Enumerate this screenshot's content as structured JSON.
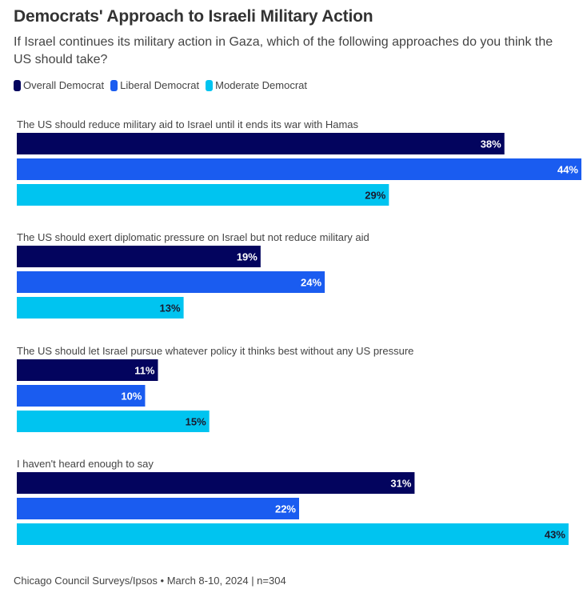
{
  "header": {
    "title": "Democrats' Approach to Israeli Military Action",
    "subtitle": "If Israel continues its military action in Gaza, which of the following approaches do you think the US should take?"
  },
  "footer": {
    "source": "Chicago Council Surveys/Ipsos • March 8-10, 2024 | n=304"
  },
  "chart_data": {
    "type": "bar",
    "orientation": "horizontal",
    "title": "Democrats' Approach to Israeli Military Action",
    "subtitle": "If Israel continues its military action in Gaza, which of the following approaches do you think the US should take?",
    "xlabel": "",
    "ylabel": "",
    "xlim": [
      0,
      44
    ],
    "grid": false,
    "legend_position": "top-left",
    "value_suffix": "%",
    "categories": [
      "The US should reduce military aid to Israel until it ends its war with Hamas",
      "The US should exert diplomatic pressure on Israel but not reduce military aid",
      "The US should let Israel pursue whatever policy it thinks best without any US pressure",
      "I haven't heard enough to say"
    ],
    "series": [
      {
        "name": "Overall Democrat",
        "color": "#03045e",
        "label_color": "#ffffff",
        "values": [
          38,
          19,
          11,
          31
        ]
      },
      {
        "name": "Liberal Democrat",
        "color": "#1a5cf0",
        "label_color": "#ffffff",
        "values": [
          44,
          24,
          10,
          22
        ]
      },
      {
        "name": "Moderate Democrat",
        "color": "#00c4f0",
        "label_color": "#1a1a2e",
        "values": [
          29,
          13,
          15,
          43
        ]
      }
    ]
  }
}
